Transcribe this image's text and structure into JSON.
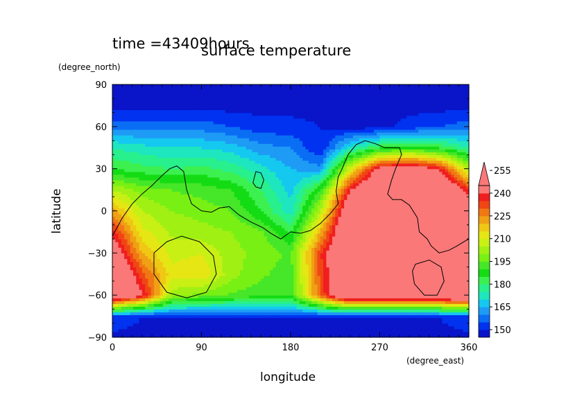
{
  "time_label": "time =43409hours",
  "chart_data": {
    "type": "heatmap",
    "title": "surface temperature",
    "xlabel": "longitude",
    "ylabel": "latitude",
    "x_unit": "(degree_east)",
    "y_unit": "(degree_north)",
    "xlim": [
      0,
      360
    ],
    "ylim": [
      -90,
      90
    ],
    "x_ticks": [
      0,
      90,
      180,
      270,
      360
    ],
    "y_ticks": [
      -90,
      -60,
      -30,
      0,
      30,
      60,
      90
    ],
    "colorbar": {
      "levels": [
        145,
        150,
        155,
        160,
        165,
        170,
        175,
        180,
        185,
        190,
        195,
        200,
        205,
        210,
        215,
        220,
        225,
        230,
        235,
        240,
        245,
        250,
        255,
        260
      ],
      "tick_labels": [
        150,
        165,
        180,
        195,
        210,
        225,
        240,
        255
      ],
      "colors": [
        "#0a14c8",
        "#0032f0",
        "#0a6ef5",
        "#1e9bf5",
        "#14c8f0",
        "#1ee6be",
        "#28f08c",
        "#3cf050",
        "#14dc14",
        "#46e628",
        "#78f014",
        "#a0f014",
        "#c8f014",
        "#e6e614",
        "#f0c814",
        "#f0a014",
        "#f07814",
        "#f04614",
        "#f01e1e",
        "#fa7878"
      ],
      "over_color": "#fa7878",
      "extend": "max"
    },
    "temperature_grid": {
      "lon": [
        0,
        30,
        60,
        90,
        120,
        150,
        180,
        210,
        240,
        270,
        300,
        330,
        360
      ],
      "lat": [
        -90,
        -75,
        -60,
        -45,
        -30,
        -15,
        0,
        15,
        30,
        45,
        60,
        75,
        90
      ],
      "values": [
        [
          148,
          148,
          148,
          148,
          148,
          148,
          148,
          148,
          148,
          148,
          148,
          148,
          148
        ],
        [
          155,
          150,
          150,
          150,
          150,
          150,
          150,
          150,
          150,
          150,
          150,
          150,
          155
        ],
        [
          262,
          242,
          202,
          198,
          194,
          192,
          190,
          230,
          262,
          262,
          262,
          262,
          262
        ],
        [
          262,
          232,
          212,
          214,
          202,
          196,
          192,
          232,
          262,
          262,
          262,
          262,
          262
        ],
        [
          250,
          220,
          208,
          210,
          202,
          198,
          194,
          234,
          262,
          262,
          262,
          262,
          262
        ],
        [
          238,
          212,
          204,
          202,
          200,
          196,
          184,
          220,
          262,
          262,
          262,
          262,
          262
        ],
        [
          222,
          205,
          200,
          198,
          195,
          185,
          172,
          205,
          255,
          262,
          262,
          262,
          250
        ],
        [
          205,
          198,
          195,
          193,
          190,
          180,
          168,
          190,
          240,
          262,
          262,
          262,
          235
        ],
        [
          185,
          182,
          180,
          182,
          178,
          172,
          165,
          162,
          210,
          245,
          250,
          240,
          205
        ],
        [
          175,
          172,
          170,
          170,
          168,
          162,
          160,
          150,
          172,
          185,
          190,
          185,
          175
        ],
        [
          158,
          158,
          158,
          158,
          155,
          152,
          152,
          150,
          148,
          148,
          152,
          155,
          158
        ],
        [
          148,
          148,
          148,
          148,
          148,
          148,
          148,
          148,
          148,
          148,
          148,
          148,
          148
        ],
        [
          148,
          148,
          148,
          148,
          148,
          148,
          148,
          148,
          148,
          148,
          148,
          148,
          148
        ]
      ]
    },
    "contours": [
      {
        "name": "continent",
        "points": [
          [
            0,
            -18
          ],
          [
            10,
            -5
          ],
          [
            20,
            5
          ],
          [
            30,
            12
          ],
          [
            40,
            18
          ],
          [
            50,
            25
          ],
          [
            58,
            30
          ],
          [
            65,
            32
          ],
          [
            72,
            28
          ],
          [
            75,
            15
          ],
          [
            80,
            5
          ],
          [
            90,
            0
          ],
          [
            100,
            -1
          ],
          [
            108,
            2
          ],
          [
            118,
            3
          ],
          [
            128,
            -3
          ],
          [
            140,
            -8
          ],
          [
            152,
            -12
          ],
          [
            160,
            -16
          ],
          [
            170,
            -20
          ],
          [
            180,
            -15
          ],
          [
            190,
            -16
          ],
          [
            200,
            -14
          ],
          [
            210,
            -9
          ],
          [
            220,
            -2
          ],
          [
            228,
            5
          ],
          [
            226,
            14
          ],
          [
            228,
            24
          ],
          [
            232,
            30
          ],
          [
            238,
            40
          ],
          [
            246,
            47
          ],
          [
            255,
            50
          ],
          [
            265,
            48
          ],
          [
            275,
            45
          ],
          [
            290,
            45
          ],
          [
            292,
            40
          ],
          [
            286,
            30
          ],
          [
            282,
            22
          ],
          [
            278,
            12
          ],
          [
            283,
            8
          ],
          [
            292,
            8
          ],
          [
            300,
            4
          ],
          [
            308,
            -5
          ],
          [
            310,
            -15
          ],
          [
            318,
            -20
          ],
          [
            322,
            -25
          ],
          [
            330,
            -30
          ],
          [
            340,
            -28
          ],
          [
            348,
            -25
          ],
          [
            355,
            -22
          ],
          [
            360,
            -20
          ]
        ]
      },
      {
        "name": "island-north",
        "points": [
          [
            142,
            20
          ],
          [
            145,
            28
          ],
          [
            150,
            27
          ],
          [
            153,
            22
          ],
          [
            150,
            16
          ],
          [
            145,
            17
          ],
          [
            142,
            20
          ]
        ]
      },
      {
        "name": "crater-south-west",
        "points": [
          [
            42,
            -30
          ],
          [
            55,
            -22
          ],
          [
            70,
            -18
          ],
          [
            88,
            -22
          ],
          [
            102,
            -32
          ],
          [
            105,
            -45
          ],
          [
            95,
            -58
          ],
          [
            75,
            -62
          ],
          [
            55,
            -58
          ],
          [
            42,
            -45
          ],
          [
            42,
            -30
          ]
        ]
      },
      {
        "name": "crater-south-east",
        "points": [
          [
            306,
            -38
          ],
          [
            320,
            -35
          ],
          [
            332,
            -40
          ],
          [
            335,
            -50
          ],
          [
            328,
            -60
          ],
          [
            315,
            -60
          ],
          [
            305,
            -52
          ],
          [
            303,
            -43
          ],
          [
            306,
            -38
          ]
        ]
      }
    ]
  }
}
